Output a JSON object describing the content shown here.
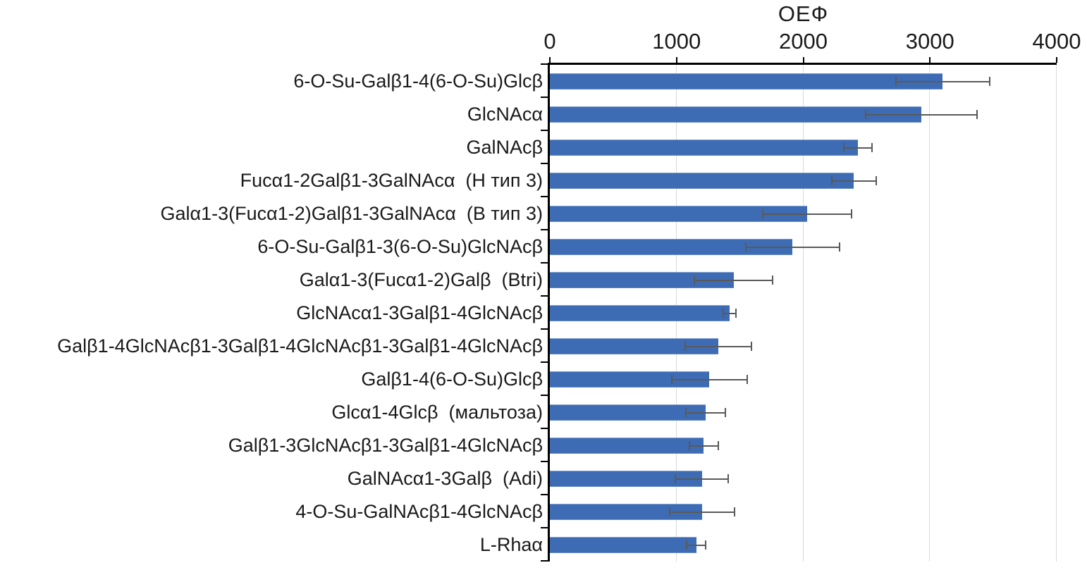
{
  "chart_data": {
    "type": "bar",
    "orientation": "horizontal",
    "title": "ОЕФ",
    "xlabel": "ОЕФ",
    "ylabel": "",
    "xlim": [
      0,
      4000
    ],
    "xticks": [
      "0",
      "1000",
      "2000",
      "3000",
      "4000"
    ],
    "grid": "vertical-light",
    "legend": "none",
    "bar_color": "#3e6cb4",
    "error_bar_color": "#595959",
    "gridline_color": "#d9d9d9",
    "axis_color": "#000000",
    "rows": [
      {
        "label": "6-O-Su-Galβ1-4(6-O-Su)Glcβ",
        "value": 3100,
        "error": 370
      },
      {
        "label": "GlcNAcα",
        "value": 2930,
        "error": 440
      },
      {
        "label": "GalNAcβ",
        "value": 2430,
        "error": 110
      },
      {
        "label": "Fucα1-2Galβ1-3GalNAcα  (Н тип 3)",
        "value": 2400,
        "error": 175
      },
      {
        "label": "Galα1-3(Fucα1-2)Galβ1-3GalNAcα  (В тип 3)",
        "value": 2030,
        "error": 350
      },
      {
        "label": "6-O-Su-Galβ1-3(6-O-Su)GlcNAcβ",
        "value": 1915,
        "error": 370
      },
      {
        "label": "Galα1-3(Fucα1-2)Galβ  (Btri)",
        "value": 1450,
        "error": 310
      },
      {
        "label": "GlcNAcα1-3Galβ1-4GlcNAcβ",
        "value": 1420,
        "error": 50
      },
      {
        "label": "Galβ1-4GlcNAcβ1-3Galβ1-4GlcNAcβ1-3Galβ1-4GlcNAcβ",
        "value": 1330,
        "error": 260
      },
      {
        "label": "Galβ1-4(6-O-Su)Glcβ",
        "value": 1260,
        "error": 300
      },
      {
        "label": "Glcα1-4Glcβ  (мальтоза)",
        "value": 1230,
        "error": 155
      },
      {
        "label": "Galβ1-3GlcNAcβ1-3Galβ1-4GlcNAcβ",
        "value": 1215,
        "error": 115
      },
      {
        "label": "GalNAcα1-3Galβ  (Adi)",
        "value": 1200,
        "error": 210
      },
      {
        "label": "4-O-Su-GalNAcβ1-4GlcNAcβ",
        "value": 1200,
        "error": 255
      },
      {
        "label": "L-Rhaα",
        "value": 1155,
        "error": 75
      }
    ]
  }
}
